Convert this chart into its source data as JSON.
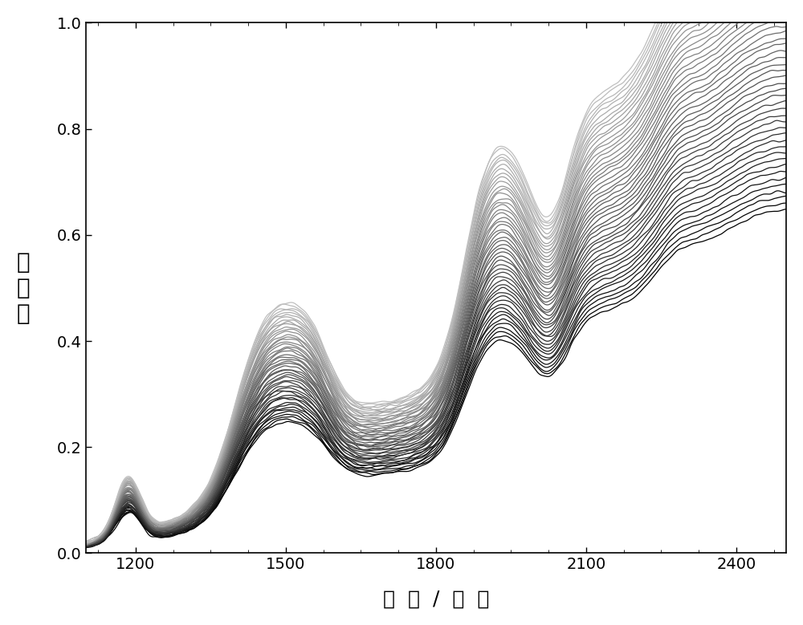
{
  "xmin": 1100,
  "xmax": 2500,
  "ymin": 0.0,
  "ymax": 1.0,
  "xlabel": "波  长  /  纳  米",
  "ylabel": "吸\n光\n度",
  "xticks": [
    1200,
    1500,
    1800,
    2100,
    2400
  ],
  "yticks": [
    0.0,
    0.2,
    0.4,
    0.6,
    0.8,
    1.0
  ],
  "n_spectra": 50,
  "background_color": "#ffffff",
  "line_width": 0.9
}
